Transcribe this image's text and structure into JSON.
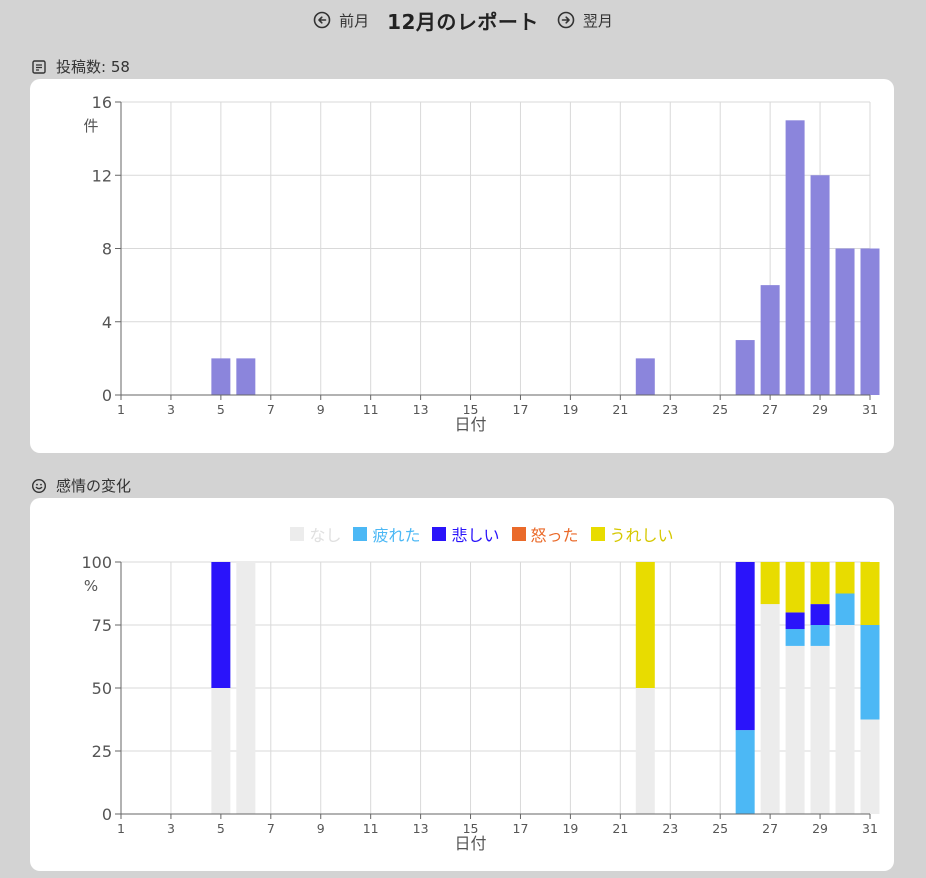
{
  "header": {
    "prev_label": "前月",
    "title": "12月のレポート",
    "next_label": "翌月"
  },
  "posts_section": {
    "label": "投稿数: 58",
    "icon": "note-icon"
  },
  "emotion_section": {
    "label": "感情の変化",
    "icon": "smiley-icon"
  },
  "chart_data": [
    {
      "type": "bar",
      "xlabel": "日付",
      "ylabel": "件",
      "ylim": [
        0,
        16
      ],
      "yticks": [
        0,
        4,
        8,
        12,
        16
      ],
      "xlim": [
        1,
        31
      ],
      "xticks": [
        1,
        3,
        5,
        7,
        9,
        11,
        13,
        15,
        17,
        19,
        21,
        23,
        25,
        27,
        29,
        31
      ],
      "grid": true,
      "color": "#8b85dc",
      "x": [
        5,
        6,
        22,
        26,
        27,
        28,
        29,
        30,
        31
      ],
      "values": [
        2,
        2,
        2,
        3,
        6,
        15,
        12,
        8,
        8
      ]
    },
    {
      "type": "bar",
      "stacked": true,
      "xlabel": "日付",
      "ylabel": "%",
      "ylim": [
        0,
        100
      ],
      "yticks": [
        0,
        25,
        50,
        75,
        100
      ],
      "xlim": [
        1,
        31
      ],
      "xticks": [
        1,
        3,
        5,
        7,
        9,
        11,
        13,
        15,
        17,
        19,
        21,
        23,
        25,
        27,
        29,
        31
      ],
      "grid": true,
      "legend": "top",
      "x": [
        5,
        6,
        22,
        26,
        27,
        28,
        29,
        30,
        31
      ],
      "series": [
        {
          "name": "なし",
          "color": "#ececec",
          "values": [
            50,
            100,
            50,
            0,
            83.3,
            66.7,
            66.7,
            75,
            37.5
          ]
        },
        {
          "name": "疲れた",
          "color": "#4cb8f5",
          "values": [
            0,
            0,
            0,
            33.3,
            0,
            6.7,
            8.3,
            12.5,
            37.5
          ]
        },
        {
          "name": "悲しい",
          "color": "#2a14fa",
          "values": [
            50,
            0,
            0,
            66.7,
            0,
            6.6,
            8.3,
            0,
            0
          ]
        },
        {
          "name": "怒った",
          "color": "#ea6a2a",
          "values": [
            0,
            0,
            0,
            0,
            0,
            0,
            0,
            0,
            0
          ]
        },
        {
          "name": "うれしい",
          "color": "#e8dc00",
          "values": [
            0,
            0,
            50,
            0,
            16.7,
            20,
            16.7,
            12.5,
            25
          ]
        }
      ]
    }
  ]
}
